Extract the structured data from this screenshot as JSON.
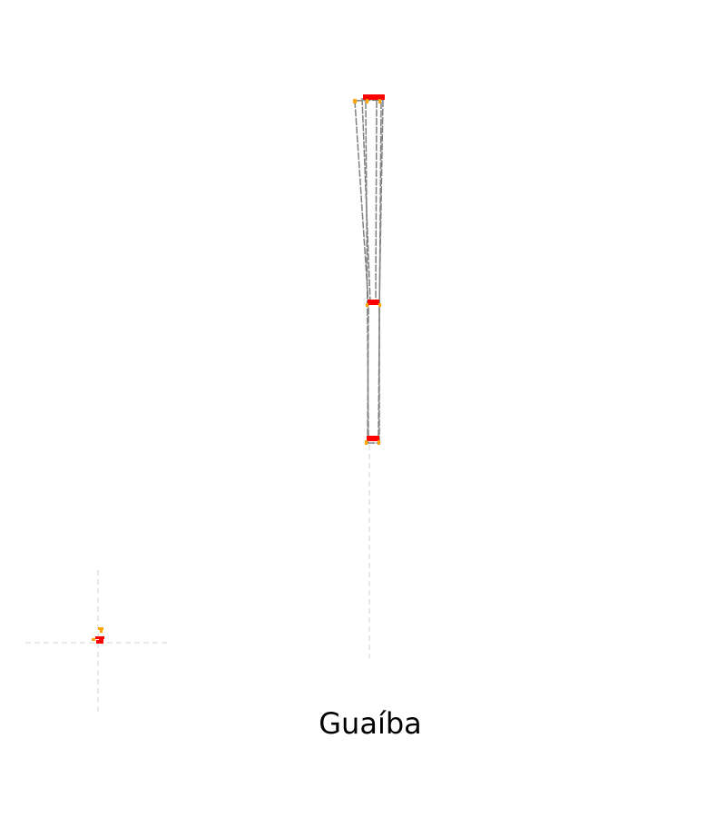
{
  "map": {
    "caption": "Guaíba",
    "colors": {
      "background": "#ffffff",
      "outline": "#808080",
      "guide": "#d3d3d3",
      "marker_red": "#ff0000",
      "marker_orange": "#ffa500"
    },
    "icons": [
      "red-marker-icon",
      "orange-marker-icon"
    ]
  }
}
